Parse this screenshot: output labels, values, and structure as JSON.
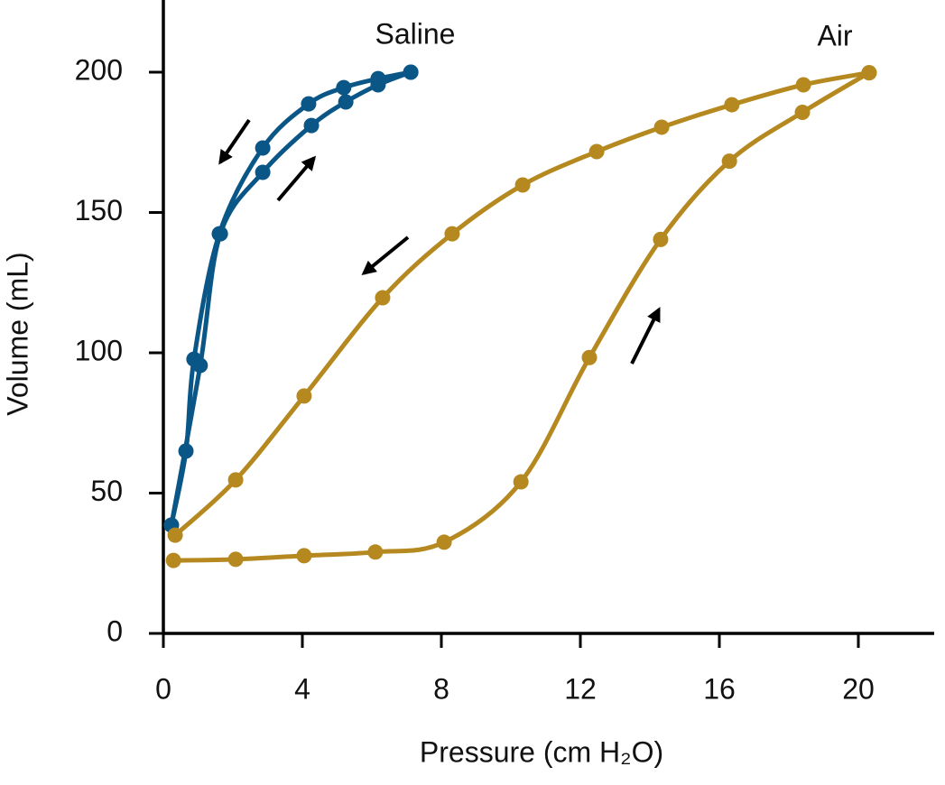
{
  "chart_data": {
    "type": "line",
    "x_label": "Pressure (cm H₂O)",
    "y_label": "Volume (mL)",
    "xlim": [
      0,
      22.2
    ],
    "ylim": [
      0,
      225
    ],
    "xticks": [
      0,
      4,
      8,
      12,
      16,
      20
    ],
    "yticks": [
      0,
      50,
      100,
      150,
      200
    ],
    "grid": false,
    "series": [
      {
        "name": "Saline",
        "color": "#0a5687",
        "curves": [
          {
            "x": [
              0.23,
              1.06,
              1.64,
              2.86,
              4.26,
              5.25,
              6.18,
              7.12
            ],
            "values": [
              38.6,
              95.5,
              142.4,
              164.3,
              181.0,
              189.4,
              195.5,
              200
            ]
          },
          {
            "x": [
              7.12,
              6.18,
              5.19,
              4.18,
              2.86,
              1.61,
              0.88,
              0.65,
              0.23
            ],
            "values": [
              200,
              197.7,
              194.5,
              188.7,
              173,
              142.4,
              97.7,
              65,
              38.6
            ]
          }
        ]
      },
      {
        "name": "Air",
        "color": "#b5891f",
        "curves": [
          {
            "x": [
              0.29,
              2.08,
              4.05,
              6.1,
              8.08,
              10.29,
              12.26,
              14.31,
              16.29,
              18.39,
              20.31
            ],
            "values": [
              26,
              26.4,
              27.7,
              29,
              32.5,
              54,
              98.3,
              140.4,
              168.3,
              185.7,
              199.8
            ]
          },
          {
            "x": [
              20.31,
              18.42,
              16.36,
              14.34,
              12.47,
              10.34,
              8.31,
              6.31,
              4.05,
              2.08,
              0.34
            ],
            "values": [
              199.8,
              195.5,
              188.4,
              180.4,
              171.7,
              159.8,
              142.4,
              119.6,
              84.6,
              54.7,
              35.0
            ]
          }
        ]
      }
    ]
  }
}
